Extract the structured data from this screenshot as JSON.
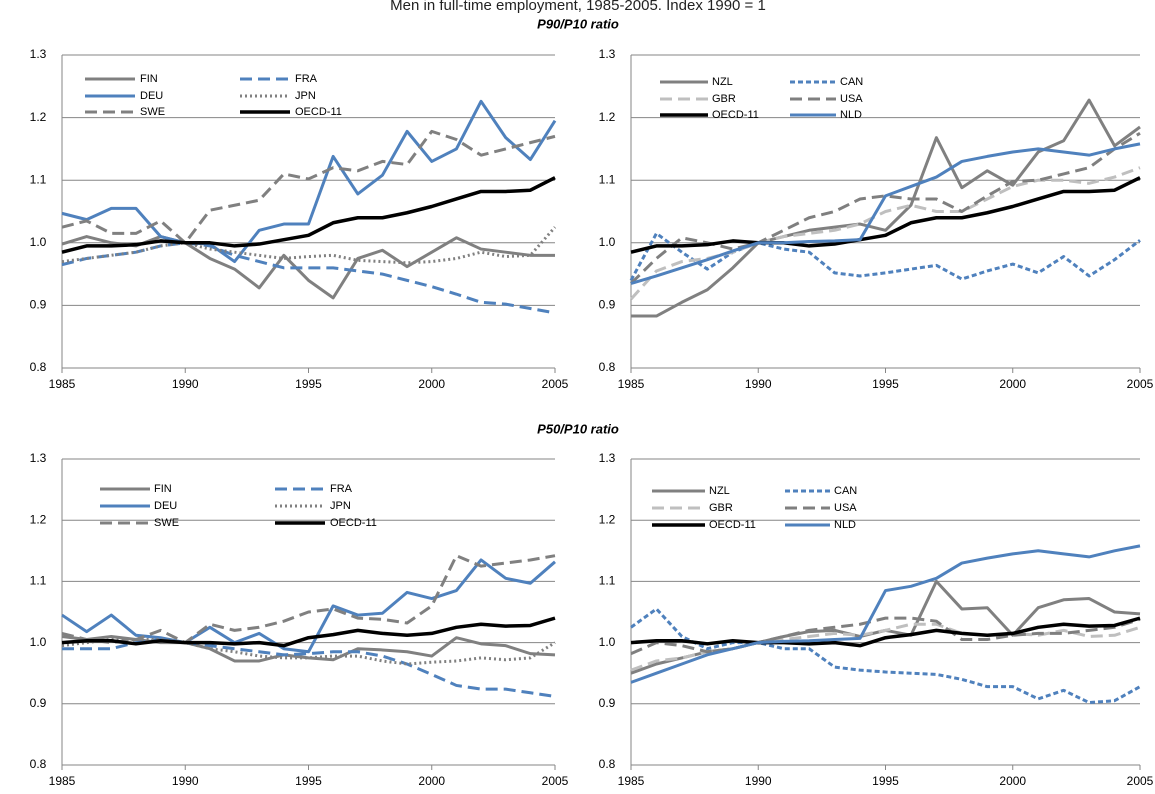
{
  "title": "Men in full-time employment, 1985-2005. Index 1990 = 1",
  "chart_data": [
    {
      "type": "line",
      "subtitle": "P90/P10 ratio",
      "x": [
        1985,
        1986,
        1987,
        1988,
        1989,
        1990,
        1991,
        1992,
        1993,
        1994,
        1995,
        1996,
        1997,
        1998,
        1999,
        2000,
        2001,
        2002,
        2003,
        2004,
        2005
      ],
      "xlim": [
        1985,
        2005
      ],
      "xticks": [
        1985,
        1990,
        1995,
        2000,
        2005
      ],
      "ylim": [
        0.8,
        1.3
      ],
      "yticks": [
        0.8,
        0.9,
        {
          "value": 1,
          "label": "1.0"
        },
        1.1,
        1.2,
        1.3
      ],
      "grid": true,
      "series": [
        {
          "name": "FIN",
          "color": "#808080",
          "dash": "solid",
          "values": [
            0.998,
            1.01,
            1.0,
            0.995,
            1.01,
            1.0,
            0.975,
            0.958,
            0.928,
            0.98,
            0.94,
            0.912,
            0.975,
            0.988,
            0.962,
            0.985,
            1.008,
            0.99,
            0.985,
            0.98,
            0.98
          ]
        },
        {
          "name": "FRA",
          "color": "#4f81bd",
          "dash": "dashed",
          "values": [
            0.965,
            0.975,
            0.98,
            0.985,
            0.995,
            1.0,
            0.995,
            0.98,
            0.97,
            0.96,
            0.96,
            0.96,
            0.955,
            0.95,
            0.94,
            0.93,
            0.918,
            0.905,
            0.902,
            0.895,
            0.888
          ]
        },
        {
          "name": "DEU",
          "color": "#4f81bd",
          "dash": "solid",
          "values": [
            1.047,
            1.037,
            1.055,
            1.055,
            1.01,
            1.0,
            0.998,
            0.97,
            1.02,
            1.03,
            1.03,
            1.138,
            1.078,
            1.108,
            1.178,
            1.13,
            1.15,
            1.226,
            1.168,
            1.133,
            1.195
          ]
        },
        {
          "name": "JPN",
          "color": "#808080",
          "dash": "dotted",
          "values": [
            0.97,
            0.975,
            0.98,
            0.985,
            0.995,
            1.0,
            0.99,
            0.985,
            0.98,
            0.975,
            0.978,
            0.98,
            0.972,
            0.97,
            0.968,
            0.97,
            0.975,
            0.985,
            0.978,
            0.98,
            1.025
          ]
        },
        {
          "name": "SWE",
          "color": "#808080",
          "dash": "dashed",
          "values": [
            1.025,
            1.035,
            1.015,
            1.015,
            1.035,
            1.0,
            1.052,
            1.06,
            1.068,
            1.11,
            1.102,
            1.12,
            1.115,
            1.13,
            1.125,
            1.178,
            1.165,
            1.14,
            1.15,
            1.16,
            1.17
          ]
        },
        {
          "name": "OECD-11",
          "color": "#000000",
          "dash": "solid",
          "weight": "bold",
          "values": [
            0.985,
            0.995,
            0.995,
            0.997,
            1.003,
            1.0,
            1.0,
            0.995,
            0.998,
            1.005,
            1.012,
            1.032,
            1.04,
            1.04,
            1.048,
            1.058,
            1.07,
            1.082,
            1.082,
            1.084,
            1.104
          ]
        }
      ]
    },
    {
      "type": "line",
      "x": [
        1985,
        1986,
        1987,
        1988,
        1989,
        1990,
        1991,
        1992,
        1993,
        1994,
        1995,
        1996,
        1997,
        1998,
        1999,
        2000,
        2001,
        2002,
        2003,
        2004,
        2005
      ],
      "xlim": [
        1985,
        2005
      ],
      "xticks": [
        1985,
        1990,
        1995,
        2000,
        2005
      ],
      "ylim": [
        0.8,
        1.3
      ],
      "yticks": [
        0.8,
        0.9,
        {
          "value": 1,
          "label": "1.0"
        },
        1.1,
        1.2,
        1.3
      ],
      "grid": true,
      "series": [
        {
          "name": "NZL",
          "color": "#808080",
          "dash": "solid",
          "values": [
            0.883,
            0.883,
            0.905,
            0.925,
            0.96,
            1.0,
            1.01,
            1.02,
            1.025,
            1.03,
            1.02,
            1.06,
            1.168,
            1.088,
            1.115,
            1.092,
            1.145,
            1.163,
            1.228,
            1.155,
            1.185
          ]
        },
        {
          "name": "CAN",
          "color": "#4f81bd",
          "dash": "short-dashed",
          "values": [
            0.94,
            1.015,
            0.985,
            0.958,
            0.985,
            1.0,
            0.99,
            0.985,
            0.952,
            0.947,
            0.952,
            0.958,
            0.964,
            0.942,
            0.955,
            0.966,
            0.952,
            0.978,
            0.947,
            0.973,
            1.004
          ]
        },
        {
          "name": "GBR",
          "color": "#bfbfbf",
          "dash": "dashed",
          "values": [
            0.91,
            0.955,
            0.97,
            0.975,
            0.985,
            1.0,
            1.01,
            1.015,
            1.02,
            1.03,
            1.05,
            1.06,
            1.05,
            1.05,
            1.07,
            1.09,
            1.1,
            1.1,
            1.095,
            1.105,
            1.12
          ]
        },
        {
          "name": "USA",
          "color": "#7f7f7f",
          "dash": "dashed",
          "values": [
            0.935,
            0.975,
            1.008,
            1.0,
            0.99,
            1.0,
            1.02,
            1.04,
            1.05,
            1.07,
            1.075,
            1.07,
            1.07,
            1.05,
            1.075,
            1.098,
            1.1,
            1.11,
            1.12,
            1.15,
            1.175
          ]
        },
        {
          "name": "OECD-11",
          "color": "#000000",
          "dash": "solid",
          "weight": "bold",
          "values": [
            0.985,
            0.995,
            0.995,
            0.997,
            1.003,
            1.0,
            1.0,
            0.995,
            0.998,
            1.005,
            1.012,
            1.032,
            1.04,
            1.04,
            1.048,
            1.058,
            1.07,
            1.082,
            1.082,
            1.084,
            1.104
          ]
        },
        {
          "name": "NLD",
          "color": "#4f81bd",
          "dash": "solid",
          "values": [
            0.935,
            0.947,
            0.96,
            0.973,
            0.987,
            1.0,
            1.0,
            1.002,
            1.003,
            1.005,
            1.075,
            1.09,
            1.105,
            1.13,
            1.138,
            1.145,
            1.15,
            1.145,
            1.14,
            1.15,
            1.158
          ]
        }
      ]
    },
    {
      "type": "line",
      "subtitle": "P50/P10 ratio",
      "x": [
        1985,
        1986,
        1987,
        1988,
        1989,
        1990,
        1991,
        1992,
        1993,
        1994,
        1995,
        1996,
        1997,
        1998,
        1999,
        2000,
        2001,
        2002,
        2003,
        2004,
        2005
      ],
      "xlim": [
        1985,
        2005
      ],
      "xticks": [
        1985,
        1990,
        1995,
        2000,
        2005
      ],
      "ylim": [
        0.8,
        1.3
      ],
      "yticks": [
        0.8,
        0.9,
        {
          "value": 1,
          "label": "1.0"
        },
        1.1,
        1.2,
        1.3
      ],
      "grid": true,
      "series": [
        {
          "name": "FIN",
          "color": "#808080",
          "dash": "solid",
          "values": [
            1.01,
            1.005,
            1.01,
            1.005,
            1.0,
            1.0,
            0.99,
            0.97,
            0.97,
            0.98,
            0.975,
            0.972,
            0.99,
            0.988,
            0.985,
            0.978,
            1.008,
            0.998,
            0.995,
            0.982,
            0.98
          ]
        },
        {
          "name": "FRA",
          "color": "#4f81bd",
          "dash": "dashed",
          "values": [
            0.99,
            0.99,
            0.99,
            1.0,
            1.005,
            1.0,
            0.995,
            0.99,
            0.985,
            0.98,
            0.982,
            0.985,
            0.985,
            0.978,
            0.965,
            0.948,
            0.93,
            0.924,
            0.924,
            0.918,
            0.912
          ]
        },
        {
          "name": "DEU",
          "color": "#4f81bd",
          "dash": "solid",
          "values": [
            1.045,
            1.018,
            1.045,
            1.012,
            1.008,
            1.0,
            1.025,
            1.0,
            1.015,
            0.99,
            0.985,
            1.06,
            1.045,
            1.048,
            1.082,
            1.072,
            1.085,
            1.135,
            1.105,
            1.097,
            1.132
          ]
        },
        {
          "name": "JPN",
          "color": "#808080",
          "dash": "dotted",
          "values": [
            0.995,
            1.0,
            1.005,
            1.005,
            1.005,
            1.0,
            0.99,
            0.985,
            0.978,
            0.975,
            0.975,
            0.978,
            0.978,
            0.97,
            0.965,
            0.968,
            0.97,
            0.975,
            0.972,
            0.975,
            1.0
          ]
        },
        {
          "name": "SWE",
          "color": "#808080",
          "dash": "dashed",
          "values": [
            1.015,
            1.005,
            1.0,
            1.005,
            1.02,
            1.0,
            1.03,
            1.02,
            1.025,
            1.035,
            1.05,
            1.055,
            1.04,
            1.038,
            1.032,
            1.06,
            1.142,
            1.125,
            1.13,
            1.135,
            1.142
          ]
        },
        {
          "name": "OECD-11",
          "color": "#000000",
          "dash": "solid",
          "weight": "bold",
          "values": [
            1.0,
            1.003,
            1.003,
            0.998,
            1.003,
            1.0,
            1.0,
            0.998,
            1.0,
            0.995,
            1.008,
            1.013,
            1.02,
            1.015,
            1.012,
            1.015,
            1.025,
            1.03,
            1.027,
            1.028,
            1.04
          ]
        }
      ]
    },
    {
      "type": "line",
      "x": [
        1985,
        1986,
        1987,
        1988,
        1989,
        1990,
        1991,
        1992,
        1993,
        1994,
        1995,
        1996,
        1997,
        1998,
        1999,
        2000,
        2001,
        2002,
        2003,
        2004,
        2005
      ],
      "xlim": [
        1985,
        2005
      ],
      "xticks": [
        1985,
        1990,
        1995,
        2000,
        2005
      ],
      "ylim": [
        0.8,
        1.3
      ],
      "yticks": [
        0.8,
        0.9,
        {
          "value": 1,
          "label": "1.0"
        },
        1.1,
        1.2,
        1.3
      ],
      "grid": true,
      "series": [
        {
          "name": "NZL",
          "color": "#808080",
          "dash": "solid",
          "values": [
            0.95,
            0.965,
            0.975,
            0.985,
            0.99,
            1.0,
            1.01,
            1.018,
            1.02,
            1.01,
            1.02,
            1.012,
            1.1,
            1.055,
            1.057,
            1.012,
            1.057,
            1.07,
            1.072,
            1.05,
            1.047
          ]
        },
        {
          "name": "CAN",
          "color": "#4f81bd",
          "dash": "short-dashed",
          "values": [
            1.025,
            1.055,
            1.01,
            0.99,
            1.0,
            1.0,
            0.99,
            0.99,
            0.96,
            0.955,
            0.952,
            0.95,
            0.948,
            0.94,
            0.928,
            0.928,
            0.908,
            0.922,
            0.902,
            0.905,
            0.928
          ]
        },
        {
          "name": "GBR",
          "color": "#bfbfbf",
          "dash": "dashed",
          "values": [
            0.955,
            0.97,
            0.975,
            0.985,
            0.99,
            1.0,
            1.005,
            1.01,
            1.015,
            1.012,
            1.02,
            1.03,
            1.03,
            1.015,
            1.012,
            1.015,
            1.012,
            1.02,
            1.01,
            1.012,
            1.025
          ]
        },
        {
          "name": "USA",
          "color": "#7f7f7f",
          "dash": "dashed",
          "values": [
            0.982,
            1.0,
            0.995,
            0.985,
            0.99,
            1.0,
            1.01,
            1.02,
            1.025,
            1.03,
            1.04,
            1.04,
            1.035,
            1.005,
            1.005,
            1.012,
            1.015,
            1.015,
            1.02,
            1.025,
            1.038
          ]
        },
        {
          "name": "OECD-11",
          "color": "#000000",
          "dash": "solid",
          "weight": "bold",
          "values": [
            1.0,
            1.003,
            1.003,
            0.998,
            1.003,
            1.0,
            1.0,
            0.998,
            1.0,
            0.995,
            1.008,
            1.013,
            1.02,
            1.015,
            1.012,
            1.015,
            1.025,
            1.03,
            1.027,
            1.028,
            1.04
          ]
        },
        {
          "name": "NLD",
          "color": "#4f81bd",
          "dash": "solid",
          "values": [
            0.935,
            0.95,
            0.965,
            0.98,
            0.99,
            1.0,
            1.002,
            1.003,
            1.005,
            1.007,
            1.085,
            1.092,
            1.105,
            1.13,
            1.138,
            1.145,
            1.15,
            1.145,
            1.14,
            1.15,
            1.158
          ]
        }
      ]
    }
  ]
}
